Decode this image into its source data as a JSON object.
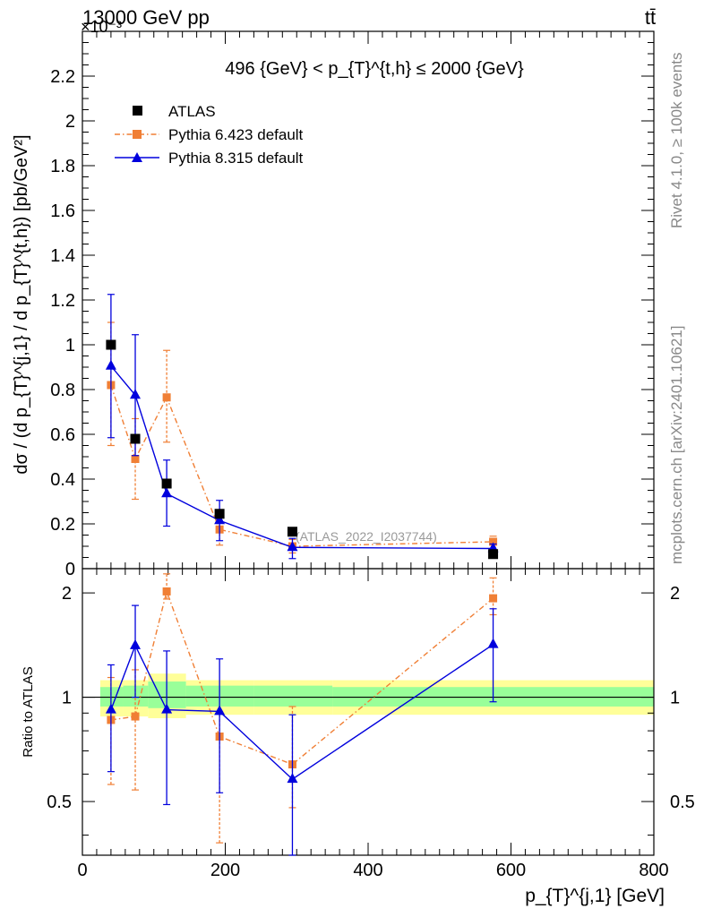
{
  "header": {
    "left": "13000 GeV pp",
    "right": "tt̄",
    "exponent": "×10⁻³"
  },
  "side_labels": {
    "rivet": "Rivet 4.1.0, ≥ 100k events",
    "mcplots": "mcplots.cern.ch [arXiv:2401.10621]"
  },
  "chart_data": [
    {
      "type": "scatter",
      "title": "496 {GeV} < p_{T}^{t,h} ≤ 2000 {GeV}",
      "ylabel": "dσ / (d p_{T}^{j,1} / d p_{T}^{t,h}) [pb/GeV²]",
      "xlabel": "",
      "xlim": [
        0,
        800
      ],
      "ylim": [
        0,
        2.4
      ],
      "y_scale_factor": "1e-3",
      "yticks": [
        0.2,
        0.4,
        0.6,
        0.8,
        1.0,
        1.2,
        1.4,
        1.6,
        1.8,
        2.0,
        2.2
      ],
      "ytick_labels": [
        "0.2",
        "0.4",
        "0.6",
        "0.8",
        "1",
        "1.2",
        "1.4",
        "1.6",
        "1.8",
        "2",
        "2.2"
      ],
      "y_bottom_label": "0",
      "watermark": "(ATLAS_2022_I2037744)",
      "legend": [
        "ATLAS",
        "Pythia 6.423 default",
        "Pythia 8.315 default"
      ],
      "series": [
        {
          "name": "ATLAS",
          "color": "#000000",
          "marker": "square",
          "x": [
            40,
            74,
            118,
            192,
            294,
            575
          ],
          "y": [
            1.0,
            0.58,
            0.38,
            0.245,
            0.165,
            0.065
          ]
        },
        {
          "name": "Pythia 6.423 default",
          "color": "#f07f35",
          "marker": "square",
          "line": "dash-dot",
          "x": [
            40,
            74,
            118,
            192,
            294,
            575
          ],
          "y": [
            0.82,
            0.49,
            0.765,
            0.175,
            0.1,
            0.12
          ],
          "yerr_low": [
            0.27,
            0.18,
            0.2,
            0.07,
            0.03,
            0.015
          ],
          "yerr_high": [
            0.28,
            0.18,
            0.21,
            0.07,
            0.03,
            0.025
          ]
        },
        {
          "name": "Pythia 8.315 default",
          "color": "#0000dd",
          "marker": "triangle",
          "x": [
            40,
            74,
            118,
            192,
            294,
            575
          ],
          "y": [
            0.905,
            0.775,
            0.335,
            0.215,
            0.095,
            0.09
          ],
          "yerr_low": [
            0.32,
            0.27,
            0.145,
            0.09,
            0.05,
            0.02
          ],
          "yerr_high": [
            0.32,
            0.27,
            0.15,
            0.09,
            0.04,
            0.02
          ]
        }
      ]
    },
    {
      "type": "scatter",
      "ylabel": "Ratio to ATLAS",
      "xlabel": "p_{T}^{j,1} [GeV]",
      "xlim": [
        0,
        800
      ],
      "ylim": [
        0.35,
        2.35
      ],
      "yticks": [
        0.5,
        1,
        2
      ],
      "ytick_labels": [
        "0.5",
        "1",
        "2"
      ],
      "xticks": [
        0,
        200,
        400,
        600,
        800
      ],
      "xtick_labels": [
        "0",
        "200",
        "400",
        "600",
        "800"
      ],
      "reference_line": 1,
      "uncertainty_bands": [
        {
          "x_low": 25,
          "x_high": 57,
          "inner_low": 0.94,
          "inner_high": 1.07,
          "outer_low": 0.88,
          "outer_high": 1.12
        },
        {
          "x_low": 57,
          "x_high": 92,
          "inner_low": 0.94,
          "inner_high": 1.08,
          "outer_low": 0.88,
          "outer_high": 1.12
        },
        {
          "x_low": 92,
          "x_high": 145,
          "inner_low": 0.93,
          "inner_high": 1.11,
          "outer_low": 0.87,
          "outer_high": 1.17
        },
        {
          "x_low": 145,
          "x_high": 240,
          "inner_low": 0.94,
          "inner_high": 1.08,
          "outer_low": 0.89,
          "outer_high": 1.12
        },
        {
          "x_low": 240,
          "x_high": 350,
          "inner_low": 0.94,
          "inner_high": 1.08,
          "outer_low": 0.89,
          "outer_high": 1.12
        },
        {
          "x_low": 350,
          "x_high": 800,
          "inner_low": 0.94,
          "inner_high": 1.07,
          "outer_low": 0.89,
          "outer_high": 1.12
        }
      ],
      "series": [
        {
          "name": "Pythia 6.423 default",
          "color": "#f07f35",
          "marker": "square",
          "line": "dash-dot",
          "x": [
            40,
            74,
            118,
            192,
            294,
            575
          ],
          "y": [
            0.86,
            0.88,
            2.02,
            0.77,
            0.64,
            1.93
          ],
          "yerr_low": [
            0.3,
            0.34,
            0.1,
            0.39,
            0.16,
            0.2
          ],
          "yerr_high": [
            0.28,
            0.32,
            0.25,
            0.14,
            0.3,
            0.28
          ]
        },
        {
          "name": "Pythia 8.315 default",
          "color": "#0000dd",
          "marker": "triangle",
          "x": [
            40,
            74,
            118,
            192,
            294,
            575
          ],
          "y": [
            0.92,
            1.41,
            0.92,
            0.91,
            0.58,
            1.42
          ],
          "yerr_low": [
            0.31,
            0.41,
            0.43,
            0.38,
            0.31,
            0.45
          ],
          "yerr_high": [
            0.32,
            0.43,
            0.44,
            0.38,
            0.31,
            0.38
          ]
        }
      ]
    }
  ]
}
